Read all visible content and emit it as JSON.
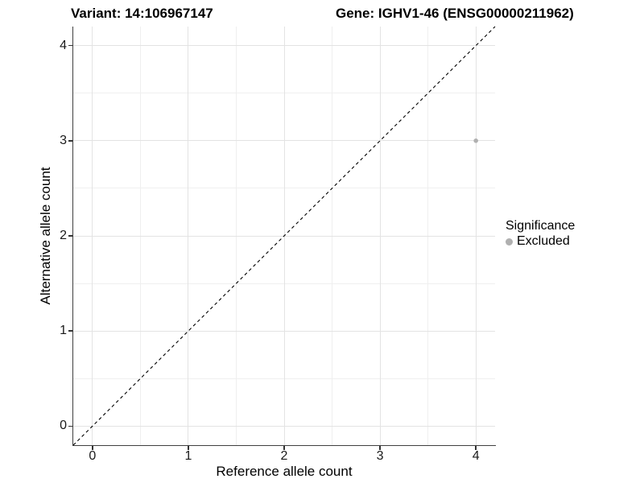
{
  "titles": {
    "variant": "Variant: 14:106967147",
    "gene": "Gene: IGHV1-46 (ENSG00000211962)"
  },
  "chart_data": {
    "type": "scatter",
    "title_left": "Variant: 14:106967147",
    "title_right": "Gene: IGHV1-46 (ENSG00000211962)",
    "xlabel": "Reference allele count",
    "ylabel": "Alternative allele count",
    "xlim": [
      -0.2,
      4.2
    ],
    "ylim": [
      -0.2,
      4.2
    ],
    "xticks": [
      0,
      1,
      2,
      3,
      4
    ],
    "yticks": [
      0,
      1,
      2,
      3,
      4
    ],
    "minor_xticks": [
      0.5,
      1.5,
      2.5,
      3.5
    ],
    "minor_yticks": [
      0.5,
      1.5,
      2.5,
      3.5
    ],
    "grid": true,
    "reference_line": {
      "slope": 1,
      "intercept": 0,
      "style": "dashed",
      "color": "#000000"
    },
    "series": [
      {
        "name": "Excluded",
        "color": "#b0b0b0",
        "points": [
          {
            "x": 4,
            "y": 3
          }
        ]
      }
    ],
    "legend": {
      "title": "Significance",
      "position": "right",
      "items": [
        {
          "label": "Excluded",
          "color": "#b0b0b0"
        }
      ]
    }
  }
}
